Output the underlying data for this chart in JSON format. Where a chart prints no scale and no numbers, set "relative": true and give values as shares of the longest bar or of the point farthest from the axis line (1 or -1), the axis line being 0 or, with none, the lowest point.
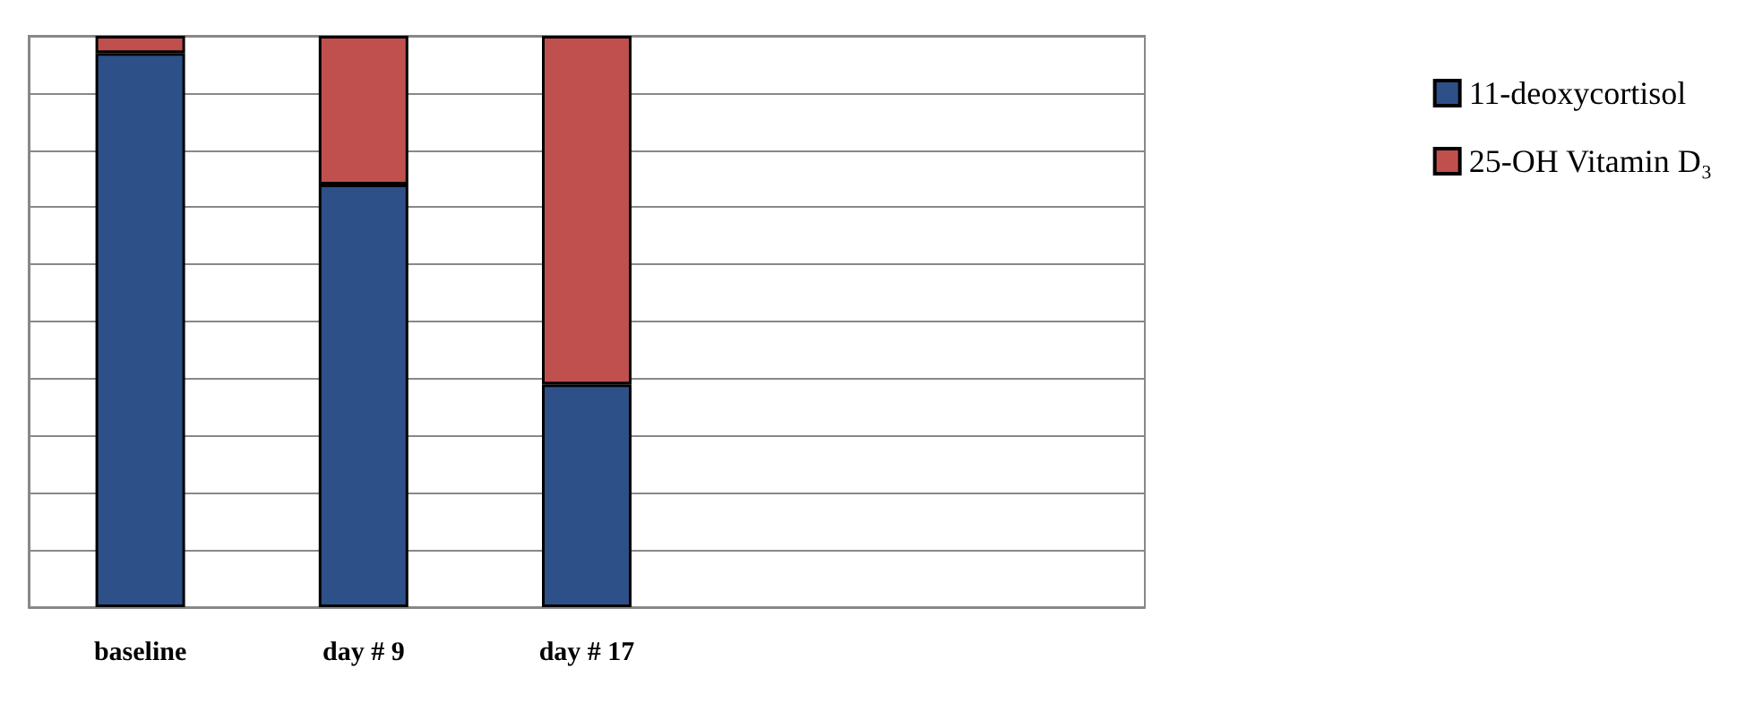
{
  "chart_data": {
    "type": "bar",
    "stacked": true,
    "relative": true,
    "grid": "y",
    "legend": "right",
    "categories": [
      "baseline",
      "day # 9",
      "day # 17",
      null,
      null
    ],
    "series": [
      {
        "name": "11-deoxycortisol",
        "color": "#2e5089",
        "values": [
          0.97,
          0.74,
          0.39,
          null,
          null
        ]
      },
      {
        "name": "25-OH Vitamin D₃",
        "color": "#c0504d",
        "values": [
          0.03,
          0.26,
          0.61,
          null,
          null
        ]
      }
    ]
  }
}
